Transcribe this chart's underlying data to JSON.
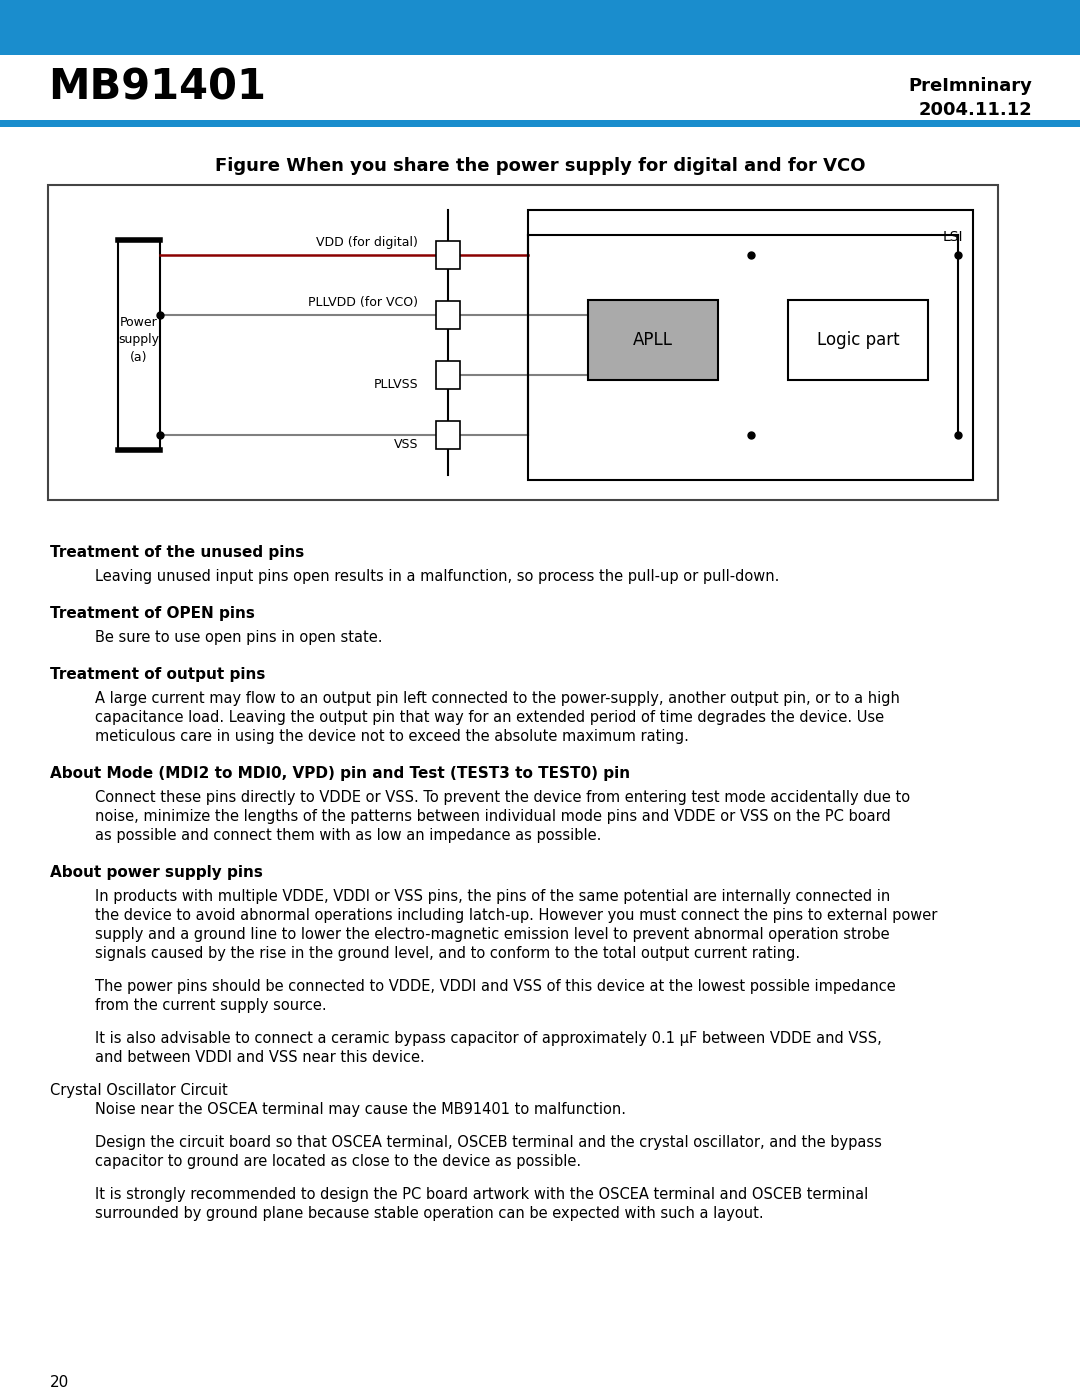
{
  "header_bg_color": "#1a8dcd",
  "header_text_left": "MB91401",
  "header_right_line1": "PreImninary",
  "header_right_line2": "2004.11.12",
  "thin_bar_color": "#1a8dcd",
  "page_bg": "#ffffff",
  "page_number": "20",
  "figure_title": "Figure When you share the power supply for digital and for VCO",
  "sections": [
    {
      "heading": "Treatment of the unused pins",
      "body": "Leaving unused input pins open results in a malfunction, so process the pull-up or pull-down."
    },
    {
      "heading": "Treatment of OPEN pins",
      "body": "Be sure to use open pins in open state."
    },
    {
      "heading": "Treatment of output pins",
      "body": "A large current may flow to an output pin left connected to the power-supply, another output pin, or to a high\ncapacitance load. Leaving the output pin that way for an extended period of time degrades the device. Use\nmeticulous care in using the device not to exceed the absolute maximum rating."
    },
    {
      "heading": "About Mode (MDI2 to MDI0, VPD) pin and Test (TEST3 to TEST0) pin",
      "body": "Connect these pins directly to VDDE or VSS. To prevent the device from entering test mode accidentally due to\nnoise, minimize the lengths of the patterns between individual mode pins and VDDE or VSS on the PC board\nas possible and connect them with as low an impedance as possible."
    },
    {
      "heading": "About power supply pins",
      "body_paragraphs": [
        "In products with multiple VDDE, VDDI or VSS pins, the pins of the same potential are internally connected in\nthe device to avoid abnormal operations including latch-up. However you must connect the pins to external power\nsupply and a ground line to lower the electro-magnetic emission level to prevent abnormal operation strobe\nsignals caused by the rise in the ground level, and to conform to the total output current rating.",
        "The power pins should be connected to VDDE, VDDI and VSS of this device at the lowest possible impedance\nfrom the current supply source.",
        "It is also advisable to connect a ceramic bypass capacitor of approximately 0.1 μF between VDDE and VSS,\nand between VDDI and VSS near this device."
      ]
    }
  ],
  "crystal_section": {
    "subheading": "Crystal Oscillator Circuit",
    "paragraphs": [
      "Noise near the OSCEA terminal may cause the MB91401 to malfunction.",
      "Design the circuit board so that OSCEA terminal, OSCEB terminal and the crystal oscillator, and the bypass\ncapacitor to ground are located as close to the device as possible.",
      "It is strongly recommended to design the PC board artwork with the OSCEA terminal and OSCEB terminal\nsurrounded by ground plane because stable operation can be expected with such a layout."
    ]
  }
}
